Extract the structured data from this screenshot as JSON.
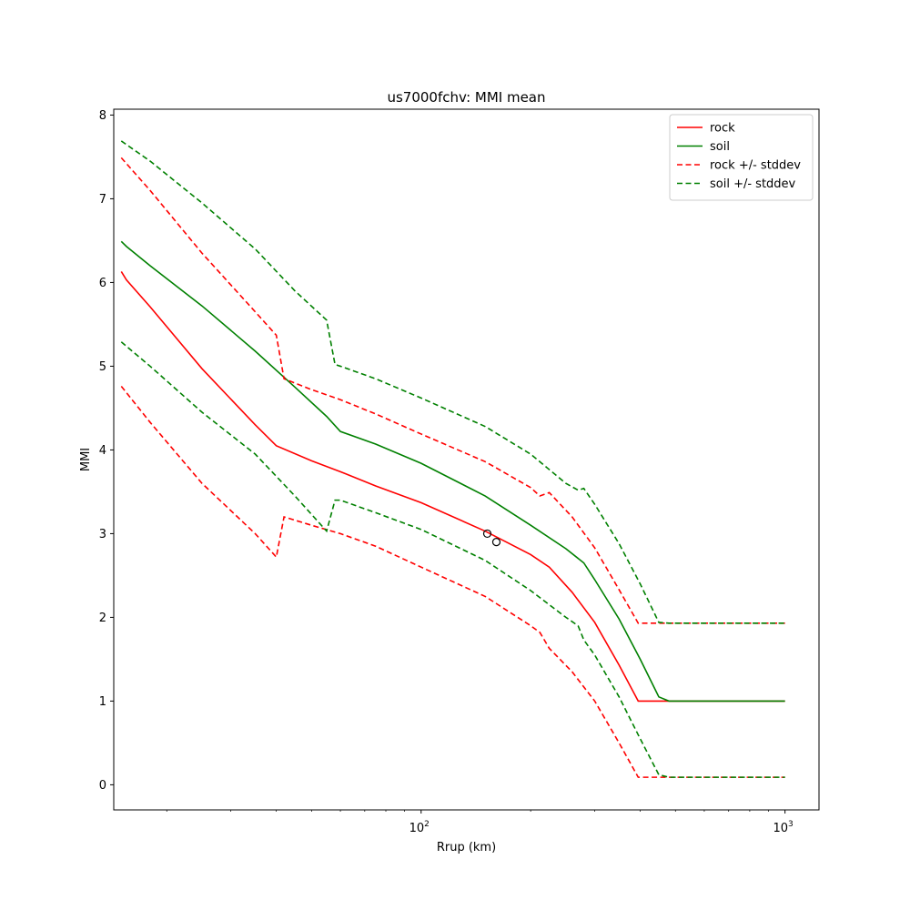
{
  "chart_data": {
    "type": "line",
    "title": "us7000fchv: MMI mean",
    "xlabel": "Rrup (km)",
    "ylabel": "MMI",
    "xscale": "log",
    "xlim": [
      14.3,
      1240
    ],
    "ylim": [
      -0.3,
      8.07
    ],
    "x_ticks": [
      {
        "value": 100,
        "base": "10",
        "exp": "2"
      },
      {
        "value": 1000,
        "base": "10",
        "exp": "3"
      }
    ],
    "y_ticks": [
      0,
      1,
      2,
      3,
      4,
      5,
      6,
      7,
      8
    ],
    "grid": false,
    "legend_position": "top-right",
    "series": [
      {
        "name": "rock",
        "color": "#ff0000",
        "style": "solid",
        "points": [
          [
            15,
            6.13
          ],
          [
            15.5,
            6.03
          ],
          [
            18,
            5.71
          ],
          [
            25,
            4.97
          ],
          [
            35,
            4.3
          ],
          [
            40,
            4.05
          ],
          [
            50,
            3.87
          ],
          [
            60,
            3.74
          ],
          [
            75,
            3.57
          ],
          [
            100,
            3.37
          ],
          [
            150,
            3.03
          ],
          [
            200,
            2.75
          ],
          [
            225,
            2.6
          ],
          [
            260,
            2.3
          ],
          [
            300,
            1.94
          ],
          [
            350,
            1.43
          ],
          [
            395,
            1.0
          ],
          [
            480,
            1.0
          ],
          [
            1000,
            1.0
          ]
        ]
      },
      {
        "name": "soil",
        "color": "#008000",
        "style": "solid",
        "points": [
          [
            15,
            6.49
          ],
          [
            15.5,
            6.43
          ],
          [
            18,
            6.2
          ],
          [
            25,
            5.72
          ],
          [
            35,
            5.18
          ],
          [
            45,
            4.75
          ],
          [
            55,
            4.4
          ],
          [
            60,
            4.22
          ],
          [
            75,
            4.07
          ],
          [
            100,
            3.84
          ],
          [
            150,
            3.45
          ],
          [
            200,
            3.1
          ],
          [
            250,
            2.82
          ],
          [
            280,
            2.65
          ],
          [
            300,
            2.45
          ],
          [
            350,
            1.98
          ],
          [
            400,
            1.5
          ],
          [
            450,
            1.05
          ],
          [
            480,
            1.0
          ],
          [
            1000,
            1.0
          ]
        ]
      },
      {
        "name": "rock +/- stddev",
        "color": "#ff0000",
        "style": "dashed",
        "points": [
          [
            15,
            7.49
          ],
          [
            18,
            7.1
          ],
          [
            25,
            6.35
          ],
          [
            35,
            5.65
          ],
          [
            40,
            5.37
          ],
          [
            42,
            4.85
          ],
          [
            50,
            4.72
          ],
          [
            60,
            4.6
          ],
          [
            75,
            4.43
          ],
          [
            100,
            4.19
          ],
          [
            150,
            3.86
          ],
          [
            200,
            3.55
          ],
          [
            212,
            3.45
          ],
          [
            225,
            3.49
          ],
          [
            260,
            3.2
          ],
          [
            300,
            2.83
          ],
          [
            350,
            2.33
          ],
          [
            395,
            1.93
          ],
          [
            480,
            1.93
          ],
          [
            1000,
            1.93
          ]
        ]
      },
      {
        "name": "",
        "color": "#ff0000",
        "style": "dashed",
        "points": [
          [
            15,
            4.76
          ],
          [
            18,
            4.33
          ],
          [
            25,
            3.6
          ],
          [
            35,
            3.0
          ],
          [
            40,
            2.72
          ],
          [
            42,
            3.2
          ],
          [
            50,
            3.1
          ],
          [
            60,
            3.0
          ],
          [
            75,
            2.85
          ],
          [
            100,
            2.6
          ],
          [
            150,
            2.25
          ],
          [
            200,
            1.9
          ],
          [
            212,
            1.82
          ],
          [
            225,
            1.63
          ],
          [
            260,
            1.35
          ],
          [
            300,
            1.0
          ],
          [
            350,
            0.5
          ],
          [
            395,
            0.09
          ],
          [
            480,
            0.09
          ],
          [
            1000,
            0.09
          ]
        ]
      },
      {
        "name": "soil +/- stddev",
        "color": "#008000",
        "style": "dashed",
        "points": [
          [
            15,
            7.69
          ],
          [
            18,
            7.45
          ],
          [
            25,
            6.95
          ],
          [
            35,
            6.4
          ],
          [
            45,
            5.9
          ],
          [
            55,
            5.55
          ],
          [
            58,
            5.02
          ],
          [
            60,
            5.0
          ],
          [
            75,
            4.85
          ],
          [
            100,
            4.62
          ],
          [
            150,
            4.28
          ],
          [
            200,
            3.95
          ],
          [
            250,
            3.6
          ],
          [
            270,
            3.52
          ],
          [
            280,
            3.54
          ],
          [
            300,
            3.35
          ],
          [
            350,
            2.88
          ],
          [
            400,
            2.4
          ],
          [
            450,
            1.94
          ],
          [
            480,
            1.93
          ],
          [
            1000,
            1.93
          ]
        ]
      },
      {
        "name": "",
        "color": "#008000",
        "style": "dashed",
        "points": [
          [
            15,
            5.29
          ],
          [
            18,
            5.0
          ],
          [
            25,
            4.45
          ],
          [
            35,
            3.95
          ],
          [
            45,
            3.45
          ],
          [
            55,
            3.03
          ],
          [
            58,
            3.4
          ],
          [
            60,
            3.4
          ],
          [
            75,
            3.25
          ],
          [
            100,
            3.05
          ],
          [
            150,
            2.68
          ],
          [
            200,
            2.32
          ],
          [
            250,
            2.0
          ],
          [
            270,
            1.9
          ],
          [
            280,
            1.73
          ],
          [
            300,
            1.55
          ],
          [
            350,
            1.05
          ],
          [
            400,
            0.55
          ],
          [
            450,
            0.12
          ],
          [
            480,
            0.09
          ],
          [
            1000,
            0.09
          ]
        ]
      }
    ],
    "observations": [
      {
        "x": 152,
        "y": 3.0
      },
      {
        "x": 161,
        "y": 2.9
      }
    ]
  }
}
